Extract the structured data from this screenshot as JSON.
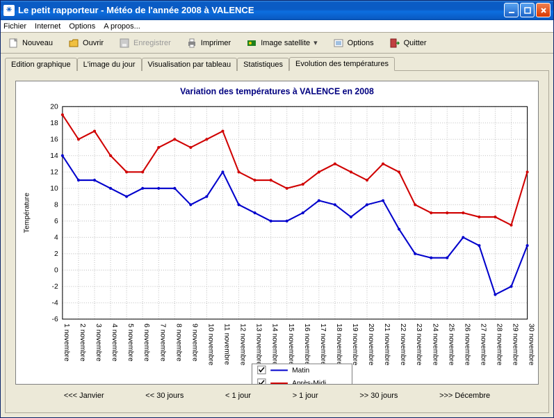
{
  "window": {
    "title": "Le petit rapporteur - Météo de l'année 2008 à VALENCE"
  },
  "menu": {
    "items": [
      "Fichier",
      "Internet",
      "Options",
      "A propos..."
    ]
  },
  "toolbar": {
    "new": "Nouveau",
    "open": "Ouvrir",
    "save": "Enregistrer",
    "print": "Imprimer",
    "satellite": "Image satellite",
    "options": "Options",
    "quit": "Quitter"
  },
  "tabs": {
    "items": [
      "Edition graphique",
      "L'image du jour",
      "Visualisation par tableau",
      "Statistiques",
      "Evolution des températures"
    ],
    "active_index": 4
  },
  "chart": {
    "title": "Variation des températures à VALENCE en 2008",
    "ylabel": "Température",
    "ylim": [
      -6,
      20
    ],
    "ytick_step": 2,
    "x_categories": [
      "1 novembre",
      "2 novembre",
      "3 novembre",
      "4 novembre",
      "5 novembre",
      "6 novembre",
      "7 novembre",
      "8 novembre",
      "9 novembre",
      "10 novembre",
      "11 novembre",
      "12 novembre",
      "13 novembre",
      "14 novembre",
      "15 novembre",
      "16 novembre",
      "17 novembre",
      "18 novembre",
      "19 novembre",
      "20 novembre",
      "21 novembre",
      "22 novembre",
      "23 novembre",
      "24 novembre",
      "25 novembre",
      "26 novembre",
      "27 novembre",
      "28 novembre",
      "29 novembre",
      "30 novembre"
    ],
    "series": [
      {
        "name": "Matin",
        "color": "#0000cc",
        "checked": true,
        "values": [
          14,
          11,
          11,
          10,
          9,
          10,
          10,
          10,
          8,
          9,
          12,
          8,
          7,
          6,
          6,
          7,
          8.5,
          8,
          6.5,
          8,
          8.5,
          5,
          2,
          1.5,
          1.5,
          4,
          3,
          -3,
          -2,
          3
        ]
      },
      {
        "name": "Après-Midi",
        "color": "#d00000",
        "checked": true,
        "values": [
          19,
          16,
          17,
          14,
          12,
          12,
          15,
          16,
          15,
          16,
          17,
          12,
          11,
          11,
          10,
          10.5,
          12,
          13,
          12,
          11,
          13,
          12,
          8,
          7,
          7,
          7,
          6.5,
          6.5,
          5.5,
          12
        ]
      }
    ],
    "title_color": "#000080",
    "title_fontsize": 12,
    "axis_fontsize": 10,
    "grid_color": "#c0c0c0",
    "axis_color": "#000000",
    "background_color": "#ffffff",
    "line_width": 2,
    "marker_size": 2
  },
  "nav": {
    "first": "<<< Janvier",
    "back30": "<< 30 jours",
    "back1": "< 1 jour",
    "fwd1": "> 1 jour",
    "fwd30": ">> 30 jours",
    "last": ">>> Décembre"
  }
}
